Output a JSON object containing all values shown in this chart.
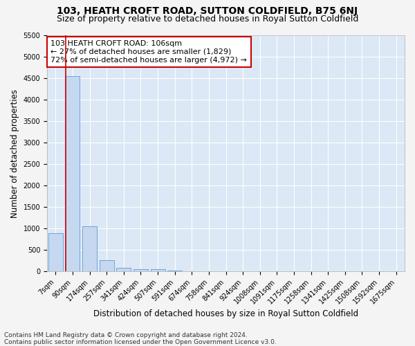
{
  "title": "103, HEATH CROFT ROAD, SUTTON COLDFIELD, B75 6NJ",
  "subtitle": "Size of property relative to detached houses in Royal Sutton Coldfield",
  "xlabel": "Distribution of detached houses by size in Royal Sutton Coldfield",
  "ylabel": "Number of detached properties",
  "bar_labels": [
    "7sqm",
    "90sqm",
    "174sqm",
    "257sqm",
    "341sqm",
    "424sqm",
    "507sqm",
    "591sqm",
    "674sqm",
    "758sqm",
    "841sqm",
    "924sqm",
    "1008sqm",
    "1091sqm",
    "1175sqm",
    "1258sqm",
    "1341sqm",
    "1425sqm",
    "1508sqm",
    "1592sqm",
    "1675sqm"
  ],
  "bar_values": [
    900,
    4560,
    1060,
    270,
    90,
    60,
    50,
    30,
    0,
    0,
    0,
    0,
    0,
    0,
    0,
    0,
    0,
    0,
    0,
    0,
    0
  ],
  "bar_color": "#c5d8f0",
  "bar_edge_color": "#5b9bd5",
  "property_line_color": "#cc0000",
  "annotation_text": "103 HEATH CROFT ROAD: 106sqm\n← 27% of detached houses are smaller (1,829)\n72% of semi-detached houses are larger (4,972) →",
  "annotation_box_color": "#ffffff",
  "annotation_box_edge": "#cc0000",
  "ylim": [
    0,
    5500
  ],
  "yticks": [
    0,
    500,
    1000,
    1500,
    2000,
    2500,
    3000,
    3500,
    4000,
    4500,
    5000,
    5500
  ],
  "footer_text": "Contains HM Land Registry data © Crown copyright and database right 2024.\nContains public sector information licensed under the Open Government Licence v3.0.",
  "fig_bg_color": "#f4f4f4",
  "plot_bg_color": "#dce8f5",
  "grid_color": "#ffffff",
  "title_fontsize": 10,
  "subtitle_fontsize": 9,
  "axis_label_fontsize": 8.5,
  "tick_fontsize": 7,
  "annotation_fontsize": 8,
  "footer_fontsize": 6.5
}
